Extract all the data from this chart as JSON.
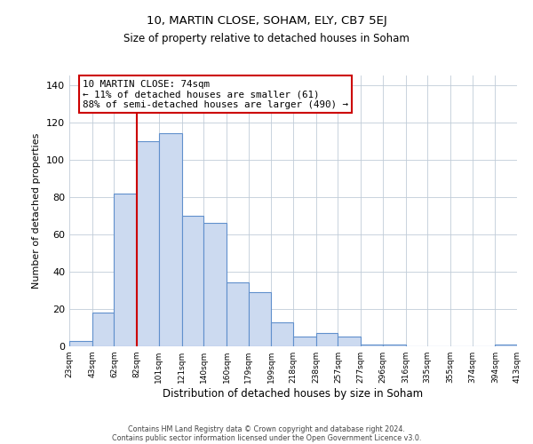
{
  "title": "10, MARTIN CLOSE, SOHAM, ELY, CB7 5EJ",
  "subtitle": "Size of property relative to detached houses in Soham",
  "xlabel": "Distribution of detached houses by size in Soham",
  "ylabel": "Number of detached properties",
  "bar_edges": [
    23,
    43,
    62,
    82,
    101,
    121,
    140,
    160,
    179,
    199,
    218,
    238,
    257,
    277,
    296,
    316,
    335,
    355,
    374,
    394,
    413
  ],
  "bar_heights": [
    3,
    18,
    82,
    110,
    114,
    70,
    66,
    34,
    29,
    13,
    5,
    7,
    5,
    1,
    1,
    0,
    0,
    0,
    0,
    1
  ],
  "bar_color": "#ccdaf0",
  "bar_edgecolor": "#6090cc",
  "red_line_x": 82,
  "ylim": [
    0,
    145
  ],
  "yticks": [
    0,
    20,
    40,
    60,
    80,
    100,
    120,
    140
  ],
  "annotation_lines": [
    "10 MARTIN CLOSE: 74sqm",
    "← 11% of detached houses are smaller (61)",
    "88% of semi-detached houses are larger (490) →"
  ],
  "annotation_box_color": "#ffffff",
  "annotation_box_edgecolor": "#cc0000",
  "footer_line1": "Contains HM Land Registry data © Crown copyright and database right 2024.",
  "footer_line2": "Contains public sector information licensed under the Open Government Licence v3.0.",
  "background_color": "#ffffff",
  "grid_color": "#c0ccd8"
}
